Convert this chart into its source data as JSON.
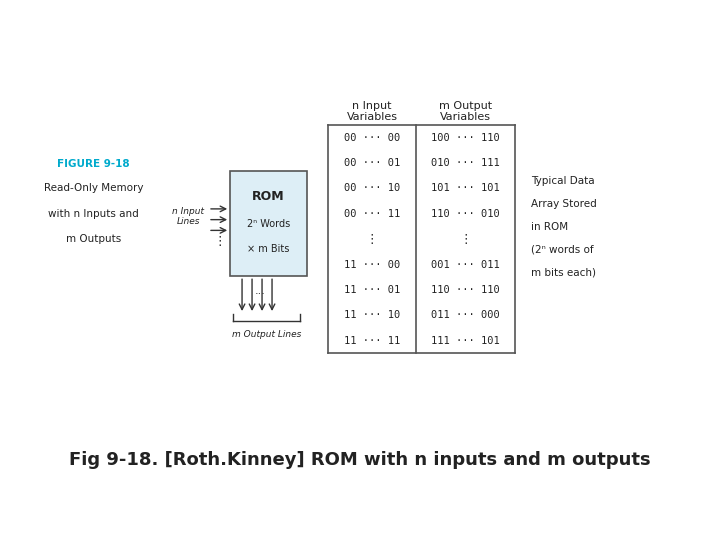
{
  "title": "Fig 9-18. [Roth.Kinney] ROM with n inputs and m outputs",
  "title_fontsize": 13,
  "bg_color": "#ffffff",
  "figure_label": "FIGURE 9-18",
  "figure_label_color": "#00aacc",
  "figure_desc": [
    "Read-Only Memory",
    "with n Inputs and",
    "m Outputs"
  ],
  "rom_label": "ROM",
  "rom_sub1": "2ⁿ Words",
  "rom_sub2": "× m Bits",
  "n_input_label": "n Input\nLines",
  "m_output_label": "m Output Lines",
  "table_header_col1": "n Input\nVariables",
  "table_header_col2": "m Output\nVariables",
  "table_rows": [
    [
      "00 ··· 00",
      "100 ··· 110"
    ],
    [
      "00 ··· 01",
      "010 ··· 111"
    ],
    [
      "00 ··· 10",
      "101 ··· 101"
    ],
    [
      "00 ··· 11",
      "110 ··· 010"
    ],
    [
      "",
      ""
    ],
    [
      "11 ··· 00",
      "001 ··· 011"
    ],
    [
      "11 ··· 01",
      "110 ··· 110"
    ],
    [
      "11 ··· 10",
      "011 ··· 000"
    ],
    [
      "11 ··· 11",
      "111 ··· 101"
    ]
  ],
  "typical_data_lines": [
    "Typical Data",
    "Array Stored",
    "in ROM",
    "(2ⁿ words of",
    "m bits each)"
  ],
  "text_color": "#222222",
  "table_line_color": "#555555"
}
